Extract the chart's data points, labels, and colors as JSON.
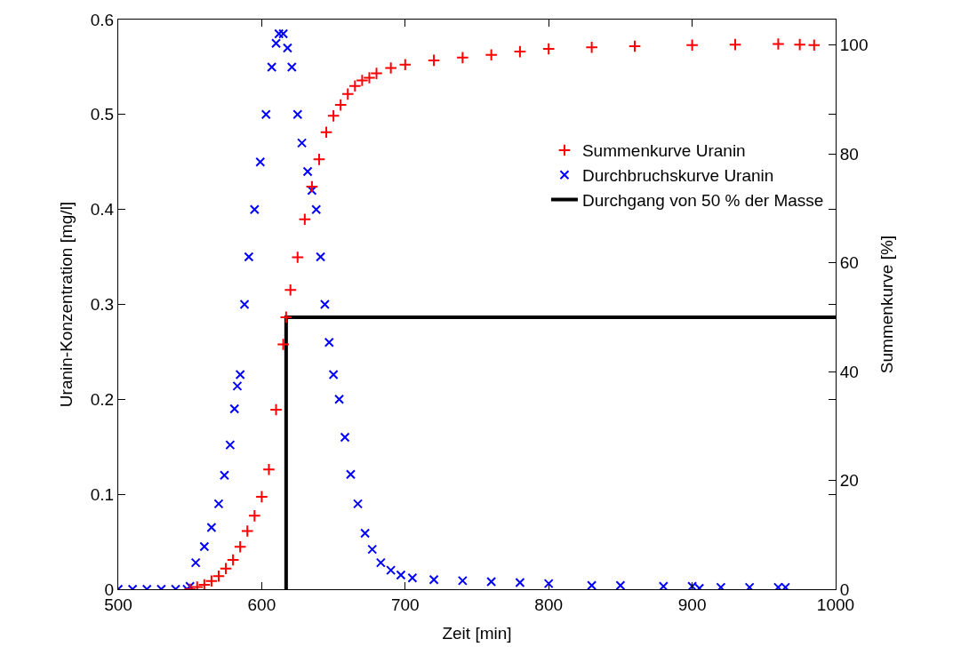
{
  "chart_data": {
    "type": "scatter",
    "xlabel": "Zeit [min]",
    "ylabel": "Uranin-Konzentration [mg/l]",
    "y2label": "Summenkurve [%]",
    "xlim": [
      500,
      1000
    ],
    "xticks": [
      500,
      600,
      700,
      800,
      900,
      1000
    ],
    "ylim": [
      0,
      0.6
    ],
    "yticks": [
      0,
      0.1,
      0.2,
      0.3,
      0.4,
      0.5,
      0.6
    ],
    "y2lim": [
      0,
      104.7
    ],
    "y2ticks": [
      0,
      20,
      40,
      60,
      80,
      100
    ],
    "legend": "top right",
    "series": [
      {
        "name": "Summenkurve Uranin",
        "color": "#ff0000",
        "marker": "plus",
        "axis": "y2",
        "x": [
          550,
          555,
          560,
          565,
          570,
          575,
          580,
          585,
          590,
          595,
          600,
          605,
          610,
          615,
          617,
          620,
          625,
          630,
          635,
          640,
          645,
          650,
          655,
          660,
          665,
          670,
          675,
          680,
          690,
          700,
          720,
          740,
          760,
          780,
          800,
          830,
          860,
          900,
          930,
          960,
          975,
          985
        ],
        "values": [
          0,
          0.4,
          0.8,
          1.5,
          2.4,
          3.8,
          5.4,
          7.8,
          10.7,
          13.5,
          17,
          22,
          33,
          45,
          50,
          55,
          61,
          68,
          74,
          79,
          84,
          87,
          89,
          91,
          92.5,
          93.5,
          94,
          94.8,
          95.8,
          96.4,
          97.2,
          97.7,
          98.2,
          98.8,
          99.3,
          99.6,
          99.8,
          100,
          100.1,
          100.2,
          100.1,
          100
        ]
      },
      {
        "name": "Durchbruchskurve Uranin",
        "color": "#0000ff",
        "marker": "cross",
        "x": [
          500,
          510,
          520,
          530,
          540,
          548,
          550,
          554,
          560,
          565,
          570,
          574,
          578,
          581,
          583,
          585,
          588,
          591,
          595,
          599,
          603,
          607,
          610,
          612,
          615,
          618,
          621,
          625,
          628,
          632,
          635,
          638,
          641,
          644,
          647,
          650,
          654,
          658,
          662,
          667,
          672,
          677,
          683,
          690,
          697,
          705,
          720,
          740,
          760,
          780,
          800,
          830,
          850,
          880,
          900,
          905,
          920,
          940,
          960,
          965
        ],
        "values": [
          0,
          0,
          0,
          0,
          0,
          0,
          0.003,
          0.028,
          0.045,
          0.065,
          0.09,
          0.12,
          0.152,
          0.19,
          0.214,
          0.226,
          0.3,
          0.35,
          0.4,
          0.45,
          0.5,
          0.55,
          0.575,
          0.585,
          0.585,
          0.57,
          0.55,
          0.5,
          0.47,
          0.44,
          0.42,
          0.4,
          0.35,
          0.3,
          0.26,
          0.226,
          0.2,
          0.16,
          0.121,
          0.09,
          0.059,
          0.042,
          0.028,
          0.02,
          0.015,
          0.012,
          0.01,
          0.009,
          0.008,
          0.007,
          0.006,
          0.004,
          0.004,
          0.003,
          0.003,
          0.001,
          0.002,
          0.002,
          0.002,
          0.002
        ]
      },
      {
        "name": "Durchgang von 50 % der Masse",
        "color": "#000000",
        "type": "line",
        "marker": "none",
        "line_style": "solid",
        "axis": "y2",
        "x": [
          617,
          617,
          1000
        ],
        "values": [
          0,
          50,
          50
        ]
      }
    ]
  }
}
